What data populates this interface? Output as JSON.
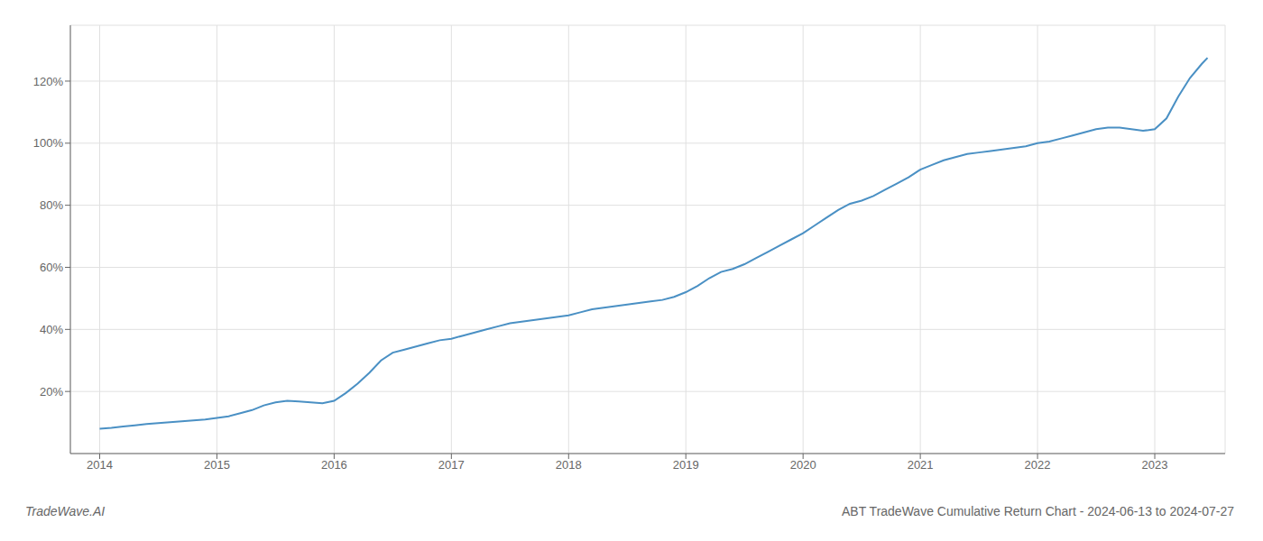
{
  "chart_data": {
    "type": "line",
    "annotations": [
      "TradeWave.AI",
      "ABT TradeWave Cumulative Return Chart - 2024-06-13 to 2024-07-27"
    ],
    "color": "#4a90c4",
    "grid": true,
    "x": [
      2014.0,
      2014.1,
      2014.2,
      2014.3,
      2014.4,
      2014.5,
      2014.6,
      2014.7,
      2014.8,
      2014.9,
      2015.0,
      2015.1,
      2015.2,
      2015.3,
      2015.4,
      2015.5,
      2015.6,
      2015.7,
      2015.8,
      2015.9,
      2016.0,
      2016.1,
      2016.2,
      2016.3,
      2016.4,
      2016.5,
      2016.6,
      2016.7,
      2016.8,
      2016.9,
      2017.0,
      2017.1,
      2017.2,
      2017.3,
      2017.4,
      2017.5,
      2017.6,
      2017.7,
      2017.8,
      2017.9,
      2018.0,
      2018.1,
      2018.2,
      2018.3,
      2018.4,
      2018.5,
      2018.6,
      2018.7,
      2018.8,
      2018.9,
      2019.0,
      2019.1,
      2019.2,
      2019.3,
      2019.4,
      2019.5,
      2019.6,
      2019.7,
      2019.8,
      2019.9,
      2020.0,
      2020.1,
      2020.2,
      2020.3,
      2020.4,
      2020.5,
      2020.6,
      2020.7,
      2020.8,
      2020.9,
      2021.0,
      2021.1,
      2021.2,
      2021.3,
      2021.4,
      2021.5,
      2021.6,
      2021.7,
      2021.8,
      2021.9,
      2022.0,
      2022.1,
      2022.2,
      2022.3,
      2022.4,
      2022.5,
      2022.6,
      2022.7,
      2022.8,
      2022.9,
      2023.0,
      2023.1,
      2023.2,
      2023.3,
      2023.4,
      2023.45
    ],
    "values": [
      8.0,
      8.3,
      8.7,
      9.1,
      9.5,
      9.8,
      10.1,
      10.4,
      10.7,
      11.0,
      11.5,
      12.0,
      13.0,
      14.0,
      15.5,
      16.5,
      17.0,
      16.8,
      16.5,
      16.2,
      17.0,
      19.5,
      22.5,
      26.0,
      30.0,
      32.5,
      33.5,
      34.5,
      35.5,
      36.5,
      37.0,
      38.0,
      39.0,
      40.0,
      41.0,
      42.0,
      42.5,
      43.0,
      43.5,
      44.0,
      44.5,
      45.5,
      46.5,
      47.0,
      47.5,
      48.0,
      48.5,
      49.0,
      49.5,
      50.5,
      52.0,
      54.0,
      56.5,
      58.5,
      59.5,
      61.0,
      63.0,
      65.0,
      67.0,
      69.0,
      71.0,
      73.5,
      76.0,
      78.5,
      80.5,
      81.5,
      83.0,
      85.0,
      87.0,
      89.0,
      91.5,
      93.0,
      94.5,
      95.5,
      96.5,
      97.0,
      97.5,
      98.0,
      98.5,
      99.0,
      100.0,
      100.5,
      101.5,
      102.5,
      103.5,
      104.5,
      105.0,
      105.0,
      104.5,
      104.0,
      104.5,
      108.0,
      115.0,
      121.0,
      125.5,
      127.5
    ],
    "xlim": [
      2013.75,
      2023.6
    ],
    "xticks": [
      2014,
      2015,
      2016,
      2017,
      2018,
      2019,
      2020,
      2021,
      2022,
      2023
    ],
    "ylim": [
      0,
      138
    ],
    "yticks": [
      {
        "value": 20,
        "label": "20%"
      },
      {
        "value": 40,
        "label": "40%"
      },
      {
        "value": 60,
        "label": "60%"
      },
      {
        "value": 80,
        "label": "80%"
      },
      {
        "value": 100,
        "label": "100%"
      },
      {
        "value": 120,
        "label": "120%"
      }
    ]
  }
}
